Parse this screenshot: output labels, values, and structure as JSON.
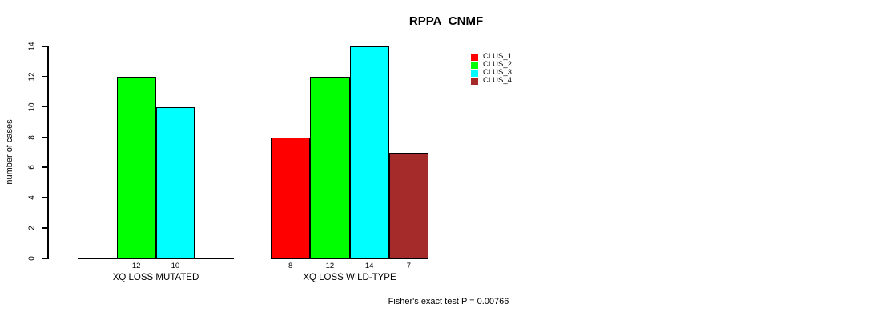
{
  "chart_data": {
    "type": "bar",
    "title": "RPPA_CNMF",
    "ylabel": "number of cases",
    "xlabel": "",
    "ylim": [
      0,
      14
    ],
    "yticks": [
      0,
      2,
      4,
      6,
      8,
      10,
      12,
      14
    ],
    "grid": false,
    "legend_position": "right",
    "bar_value_labels": true,
    "legend": [
      {
        "label": "CLUS_1",
        "color": "#ff0000"
      },
      {
        "label": "CLUS_2",
        "color": "#00ff00"
      },
      {
        "label": "CLUS_3",
        "color": "#00ffff"
      },
      {
        "label": "CLUS_4",
        "color": "#a52a2a"
      }
    ],
    "groups": [
      {
        "label": "XQ LOSS MUTATED",
        "bars": [
          {
            "series": "CLUS_2",
            "value": 12,
            "slot": 1
          },
          {
            "series": "CLUS_3",
            "value": 10,
            "slot": 2
          }
        ]
      },
      {
        "label": "XQ LOSS WILD-TYPE",
        "bars": [
          {
            "series": "CLUS_1",
            "value": 8,
            "slot": 0
          },
          {
            "series": "CLUS_2",
            "value": 12,
            "slot": 1
          },
          {
            "series": "CLUS_3",
            "value": 14,
            "slot": 2
          },
          {
            "series": "CLUS_4",
            "value": 7,
            "slot": 3
          }
        ]
      }
    ],
    "annotation": "Fisher's exact test P = 0.00766"
  }
}
